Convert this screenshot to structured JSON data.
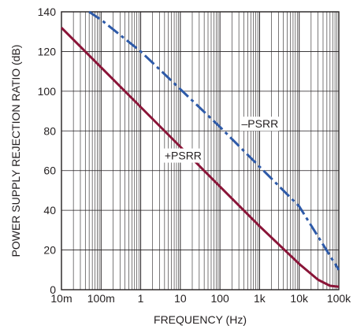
{
  "chart_data": {
    "type": "line",
    "title": "",
    "xlabel": "FREQUENCY (Hz)",
    "ylabel": "POWER SUPPLY REJECTION RATIO (dB)",
    "xscale": "log",
    "xlim": [
      0.01,
      100000
    ],
    "ylim": [
      0,
      140
    ],
    "grid": true,
    "legend": "none",
    "x_tick_labels": [
      "10m",
      "100m",
      "1",
      "10",
      "100",
      "1k",
      "10k",
      "100k"
    ],
    "x_ticks": [
      0.01,
      0.1,
      1,
      10,
      100,
      1000,
      10000,
      100000
    ],
    "y_ticks": [
      0,
      20,
      40,
      60,
      80,
      100,
      120,
      140
    ],
    "series": [
      {
        "name": "+PSRR",
        "color": "#8a1538",
        "style": "solid",
        "x": [
          0.01,
          0.1,
          1,
          10,
          100,
          1000,
          10000,
          30000,
          60000,
          100000
        ],
        "y": [
          132,
          112,
          92,
          72,
          52,
          32,
          13,
          5,
          2,
          1.5
        ]
      },
      {
        "name": "–PSRR",
        "color": "#2e5aa8",
        "style": "dashdot",
        "x": [
          0.05,
          0.1,
          1,
          10,
          100,
          1000,
          10000,
          100000
        ],
        "y": [
          140,
          136,
          120,
          101,
          82,
          62,
          42,
          10
        ]
      }
    ]
  }
}
